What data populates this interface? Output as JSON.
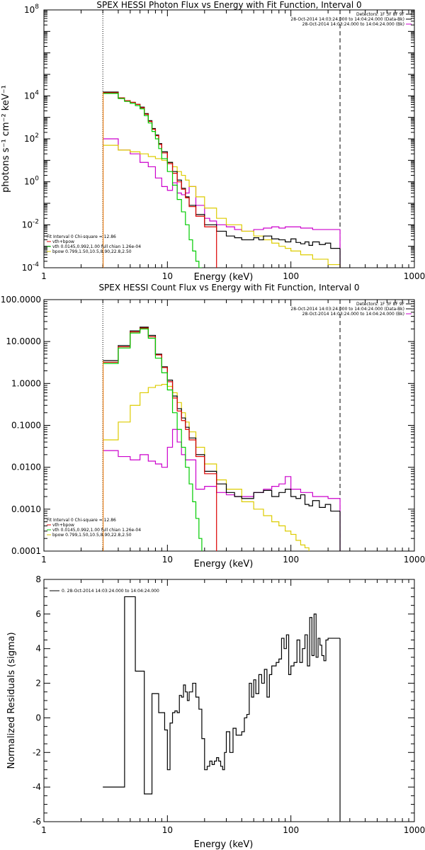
{
  "colors": {
    "data": "#000000",
    "bk": "#cc00cc",
    "fit": "#dd0000",
    "vth": "#00cc00",
    "bpow": "#ddcc00",
    "orange": "#ee7700"
  },
  "chart_data": [
    {
      "type": "line",
      "title": "SPEX HESSI Photon Flux vs Energy with Fit Function, Interval 0",
      "xlabel": "Energy (keV)",
      "ylabel": "photons s⁻¹ cm⁻² keV⁻¹",
      "xscale": "log",
      "yscale": "log",
      "xlim": [
        1,
        1000
      ],
      "ylim": [
        0.0001,
        100000000
      ],
      "xticks": [
        {
          "v": 1,
          "label": "1"
        },
        {
          "v": 10,
          "label": "10"
        },
        {
          "v": 100,
          "label": "100"
        },
        {
          "v": 1000,
          "label": "1000"
        }
      ],
      "yticks": [
        {
          "v": 0.0001,
          "base": "10",
          "exp": "-4"
        },
        {
          "v": 0.01,
          "base": "10",
          "exp": "-2"
        },
        {
          "v": 1,
          "base": "10",
          "exp": "0"
        },
        {
          "v": 100,
          "base": "10",
          "exp": "2"
        },
        {
          "v": 10000,
          "base": "10",
          "exp": "4"
        },
        {
          "v": 100000000,
          "base": "10",
          "exp": "8"
        }
      ],
      "vlines": [
        {
          "x": 3,
          "style": "dotted"
        },
        {
          "x": 250,
          "style": "dashed"
        }
      ],
      "legend_top": [
        {
          "text": "Detectors: 1F 3F 8F 9F",
          "color": "#000000"
        },
        {
          "text": "28-Oct-2014 14:03:24.000 to 14:04:24.000 (Data-Bk)",
          "color": "#000000"
        },
        {
          "text": "28-Oct-2014 14:03:24.000 to 14:04:24.000 (Bk)",
          "color": "#cc00cc"
        }
      ],
      "legend_bottom": [
        {
          "text": "Fit Interval 0   Chi-square = 12.86",
          "color": "#000000"
        },
        {
          "text": "vth+bpow",
          "color": "#dd0000"
        },
        {
          "text": "vth 0.0145,0.992,1.00  full chian 1.26e-04",
          "color": "#00cc00"
        },
        {
          "text": "bpow 0.799,1.50,10.5,8.90,22.8,2.50",
          "color": "#ddcc00"
        }
      ],
      "series": [
        {
          "key": "data",
          "color": "#000000",
          "x": [
            3,
            3.5,
            4,
            4.5,
            5,
            5.5,
            6,
            6.5,
            7,
            7.5,
            8,
            8.5,
            9,
            10,
            11,
            12,
            13,
            14,
            15,
            17,
            20,
            25,
            30,
            35,
            40,
            45,
            50,
            55,
            60,
            70,
            80,
            90,
            100,
            110,
            120,
            130,
            140,
            150,
            170,
            190,
            210,
            250
          ],
          "y": [
            15000,
            15000,
            8000,
            6000,
            5000,
            4000,
            3000,
            1500,
            700,
            300,
            150,
            60,
            25,
            8,
            3,
            1.2,
            0.5,
            0.2,
            0.08,
            0.03,
            0.01,
            0.005,
            0.003,
            0.0025,
            0.002,
            0.002,
            0.0025,
            0.002,
            0.003,
            0.0022,
            0.002,
            0.0016,
            0.0022,
            0.0015,
            0.0013,
            0.0016,
            0.0011,
            0.0016,
            0.0012,
            0.0014,
            0.0008,
            0.0008
          ]
        },
        {
          "key": "fit",
          "color": "#dd0000",
          "x": [
            3,
            3.5,
            4,
            4.5,
            5,
            5.5,
            6,
            6.5,
            7,
            7.5,
            8,
            8.5,
            9,
            10,
            11,
            12,
            13,
            14,
            15,
            17,
            20,
            25
          ],
          "y": [
            14000,
            14000,
            8000,
            6000,
            5000,
            4000,
            2800,
            1400,
            650,
            280,
            140,
            55,
            22,
            7,
            2.5,
            1,
            0.45,
            0.18,
            0.07,
            0.025,
            0.008,
            0.004
          ]
        },
        {
          "key": "vth",
          "color": "#00cc00",
          "x": [
            3,
            3.5,
            4,
            4.5,
            5,
            5.5,
            6,
            6.5,
            7,
            7.5,
            8,
            8.5,
            9,
            10,
            11,
            12,
            13,
            14,
            15,
            16,
            17,
            18,
            19
          ],
          "y": [
            13000,
            13000,
            7500,
            5500,
            4500,
            3500,
            2500,
            1200,
            550,
            220,
            100,
            35,
            12,
            3,
            0.7,
            0.15,
            0.04,
            0.01,
            0.002,
            0.0006,
            0.0002,
            0.0001,
            0.0001
          ]
        },
        {
          "key": "bpow",
          "color": "#ddcc00",
          "x": [
            3,
            4,
            5,
            6,
            7,
            8,
            9,
            10,
            11,
            12,
            13,
            14,
            15,
            17,
            20,
            25,
            30,
            40,
            50,
            60,
            70,
            80,
            90,
            100,
            120,
            150,
            200,
            250
          ],
          "y": [
            50,
            30,
            25,
            20,
            15,
            12,
            10,
            8,
            5,
            3,
            2,
            1.2,
            0.6,
            0.2,
            0.06,
            0.02,
            0.01,
            0.005,
            0.003,
            0.002,
            0.0014,
            0.001,
            0.0008,
            0.0006,
            0.0004,
            0.00025,
            0.00014,
            0.0001
          ]
        },
        {
          "key": "bk",
          "color": "#cc00cc",
          "x": [
            3,
            4,
            5,
            6,
            7,
            8,
            9,
            10,
            11,
            12,
            13,
            14,
            15,
            17,
            20,
            22,
            25,
            30,
            35,
            40,
            50,
            60,
            70,
            80,
            90,
            100,
            120,
            150,
            200,
            250
          ],
          "y": [
            100,
            30,
            20,
            8,
            5,
            1.5,
            0.6,
            0.4,
            0.9,
            0.3,
            0.25,
            0.3,
            0.6,
            0.08,
            0.02,
            0.015,
            0.01,
            0.008,
            0.006,
            0.005,
            0.006,
            0.007,
            0.008,
            0.007,
            0.008,
            0.008,
            0.007,
            0.006,
            0.006,
            0.004
          ]
        }
      ]
    },
    {
      "type": "line",
      "title": "SPEX HESSI Count Flux vs Energy with Fit Function, Interval 0",
      "xlabel": "Energy (keV)",
      "ylabel": "",
      "xscale": "log",
      "yscale": "log",
      "xlim": [
        1,
        1000
      ],
      "ylim": [
        0.0001,
        100
      ],
      "xticks": [
        {
          "v": 1,
          "label": "1"
        },
        {
          "v": 10,
          "label": "10"
        },
        {
          "v": 100,
          "label": "100"
        },
        {
          "v": 1000,
          "label": "1000"
        }
      ],
      "yticks": [
        {
          "v": 0.0001,
          "label": "0.0001"
        },
        {
          "v": 0.001,
          "label": "0.0010"
        },
        {
          "v": 0.01,
          "label": "0.0100"
        },
        {
          "v": 0.1,
          "label": "0.1000"
        },
        {
          "v": 1,
          "label": "1.0000"
        },
        {
          "v": 10,
          "label": "10.0000"
        },
        {
          "v": 100,
          "label": "100.0000"
        }
      ],
      "vlines": [
        {
          "x": 3,
          "style": "dotted"
        },
        {
          "x": 250,
          "style": "dashed"
        }
      ],
      "legend_top": [
        {
          "text": "Detectors: 1F 3F 8F 9F",
          "color": "#000000"
        },
        {
          "text": "28-Oct-2014 14:03:24.000 to 14:04:24.000 (Data-Bk)",
          "color": "#000000"
        },
        {
          "text": "28-Oct-2014 14:03:24.000 to 14:04:24.000 (Bk)",
          "color": "#cc00cc"
        }
      ],
      "legend_bottom": [
        {
          "text": "Fit Interval 0   Chi-square = 12.86",
          "color": "#000000"
        },
        {
          "text": "vth+bpow",
          "color": "#dd0000"
        },
        {
          "text": "vth 0.0145,0.992,1.00  full chian 1.26e-04",
          "color": "#00cc00"
        },
        {
          "text": "bpow 0.799,1.50,10.5,8.90,22.8,2.50",
          "color": "#ddcc00"
        }
      ],
      "series": [
        {
          "key": "data",
          "color": "#000000",
          "x": [
            3,
            4,
            5,
            6,
            7,
            8,
            9,
            10,
            11,
            12,
            13,
            14,
            15,
            17,
            20,
            25,
            30,
            35,
            40,
            50,
            60,
            70,
            80,
            90,
            100,
            110,
            120,
            130,
            140,
            150,
            170,
            190,
            210,
            250
          ],
          "y": [
            3.5,
            8,
            18,
            22,
            14,
            5,
            2.5,
            1.2,
            0.5,
            0.25,
            0.15,
            0.09,
            0.05,
            0.02,
            0.008,
            0.004,
            0.0025,
            0.002,
            0.0018,
            0.0025,
            0.0028,
            0.002,
            0.0025,
            0.003,
            0.002,
            0.0018,
            0.0022,
            0.0013,
            0.0012,
            0.0016,
            0.0011,
            0.0013,
            0.0009,
            0.0009
          ]
        },
        {
          "key": "fit",
          "color": "#dd0000",
          "x": [
            3,
            4,
            5,
            6,
            7,
            8,
            9,
            10,
            11,
            12,
            13,
            14,
            15,
            17,
            20,
            25
          ],
          "y": [
            3.2,
            7.5,
            17,
            21,
            13,
            4.8,
            2.4,
            1.1,
            0.45,
            0.22,
            0.13,
            0.08,
            0.045,
            0.018,
            0.007,
            0.0035
          ]
        },
        {
          "key": "vth",
          "color": "#00cc00",
          "x": [
            3,
            4,
            5,
            6,
            7,
            8,
            9,
            10,
            11,
            12,
            13,
            14,
            15,
            16,
            17,
            18,
            19
          ],
          "y": [
            3,
            7,
            16,
            20,
            12,
            4,
            1.8,
            0.7,
            0.2,
            0.08,
            0.03,
            0.01,
            0.004,
            0.0015,
            0.0006,
            0.0002,
            0.0001
          ]
        },
        {
          "key": "bpow",
          "color": "#ddcc00",
          "x": [
            3,
            4,
            5,
            6,
            7,
            8,
            9,
            10,
            11,
            12,
            13,
            14,
            15,
            17,
            20,
            25,
            30,
            40,
            50,
            60,
            70,
            80,
            90,
            100,
            110,
            120,
            130,
            140
          ],
          "y": [
            0.045,
            0.12,
            0.3,
            0.6,
            0.8,
            0.9,
            0.95,
            0.85,
            0.6,
            0.35,
            0.2,
            0.12,
            0.07,
            0.03,
            0.012,
            0.005,
            0.003,
            0.0015,
            0.001,
            0.0007,
            0.0005,
            0.0004,
            0.0003,
            0.00025,
            0.00018,
            0.00014,
            0.00012,
            0.0001
          ]
        },
        {
          "key": "bk",
          "color": "#cc00cc",
          "x": [
            3,
            4,
            5,
            6,
            7,
            8,
            9,
            10,
            11,
            12,
            13,
            14,
            15,
            17,
            20,
            25,
            30,
            35,
            40,
            50,
            60,
            70,
            80,
            90,
            100,
            120,
            150,
            200,
            250
          ],
          "y": [
            0.025,
            0.018,
            0.015,
            0.02,
            0.014,
            0.012,
            0.01,
            0.03,
            0.08,
            0.04,
            0.02,
            0.015,
            0.015,
            0.003,
            0.0035,
            0.0025,
            0.0022,
            0.002,
            0.002,
            0.0025,
            0.003,
            0.0035,
            0.004,
            0.006,
            0.003,
            0.0025,
            0.002,
            0.0018,
            0.001
          ]
        }
      ]
    },
    {
      "type": "line",
      "title": "",
      "xlabel": "Energy (keV)",
      "ylabel": "Normalized Residuals (sigma)",
      "xscale": "log",
      "yscale": "linear",
      "xlim": [
        1,
        1000
      ],
      "ylim": [
        -6,
        8
      ],
      "xticks": [
        {
          "v": 1,
          "label": "1"
        },
        {
          "v": 10,
          "label": "10"
        },
        {
          "v": 100,
          "label": "100"
        },
        {
          "v": 1000,
          "label": "1000"
        }
      ],
      "yticks": [
        {
          "v": -6,
          "label": "-6"
        },
        {
          "v": -4,
          "label": "-4"
        },
        {
          "v": -2,
          "label": "-2"
        },
        {
          "v": 0,
          "label": "0"
        },
        {
          "v": 2,
          "label": "2"
        },
        {
          "v": 4,
          "label": "4"
        },
        {
          "v": 6,
          "label": "6"
        },
        {
          "v": 8,
          "label": "8"
        }
      ],
      "vlines": [],
      "legend_top": [],
      "legend_bottom": [],
      "legend_line": {
        "text": "0. 28-Oct-2014 14:03:24.000 to 14:04:24.000",
        "color": "#000000"
      },
      "series": [
        {
          "key": "data",
          "color": "#000000",
          "x": [
            3,
            3.5,
            4,
            4.5,
            5,
            5.5,
            6,
            6.5,
            7,
            7.5,
            8,
            8.5,
            9,
            9.5,
            10,
            10.5,
            11,
            11.5,
            12,
            12.5,
            13,
            13.5,
            14,
            14.5,
            15,
            16,
            17,
            18,
            19,
            20,
            21,
            22,
            23,
            24,
            25,
            26,
            27,
            28,
            29,
            30,
            32,
            34,
            36,
            38,
            40,
            42,
            44,
            46,
            48,
            50,
            52,
            55,
            58,
            61,
            64,
            67,
            70,
            73,
            76,
            80,
            84,
            88,
            92,
            96,
            100,
            106,
            112,
            118,
            124,
            130,
            136,
            142,
            148,
            154,
            160,
            166,
            172,
            178,
            185,
            192,
            200,
            210,
            220,
            230,
            240,
            250
          ],
          "y": [
            -4,
            -4,
            -4,
            7,
            7,
            2.7,
            2.7,
            -4.4,
            -4.4,
            1.4,
            1.4,
            0.3,
            0.3,
            -0.7,
            -3,
            -0.3,
            0.3,
            0.4,
            0.3,
            1.3,
            1.2,
            1.9,
            1.5,
            1,
            1.5,
            2,
            1.2,
            0.5,
            -1.2,
            -3,
            -2.8,
            -2.5,
            -2.7,
            -2.5,
            -2.3,
            -2.5,
            -2.8,
            -3,
            -2,
            -0.8,
            -2,
            -0.6,
            -1,
            -1,
            -0.8,
            0,
            0.2,
            2,
            1.2,
            2.2,
            1.4,
            2.5,
            2,
            2.8,
            1.2,
            2.5,
            3,
            3,
            3.2,
            3.4,
            4.6,
            4,
            4.8,
            2.5,
            3,
            3.2,
            4.5,
            3.2,
            4,
            4.8,
            3,
            5.8,
            3.6,
            6,
            3.5,
            4.6,
            4.2,
            3.6,
            3.3,
            4.5,
            4.6,
            4.6,
            4.6,
            4.6,
            4.6,
            4.6
          ]
        }
      ]
    }
  ]
}
